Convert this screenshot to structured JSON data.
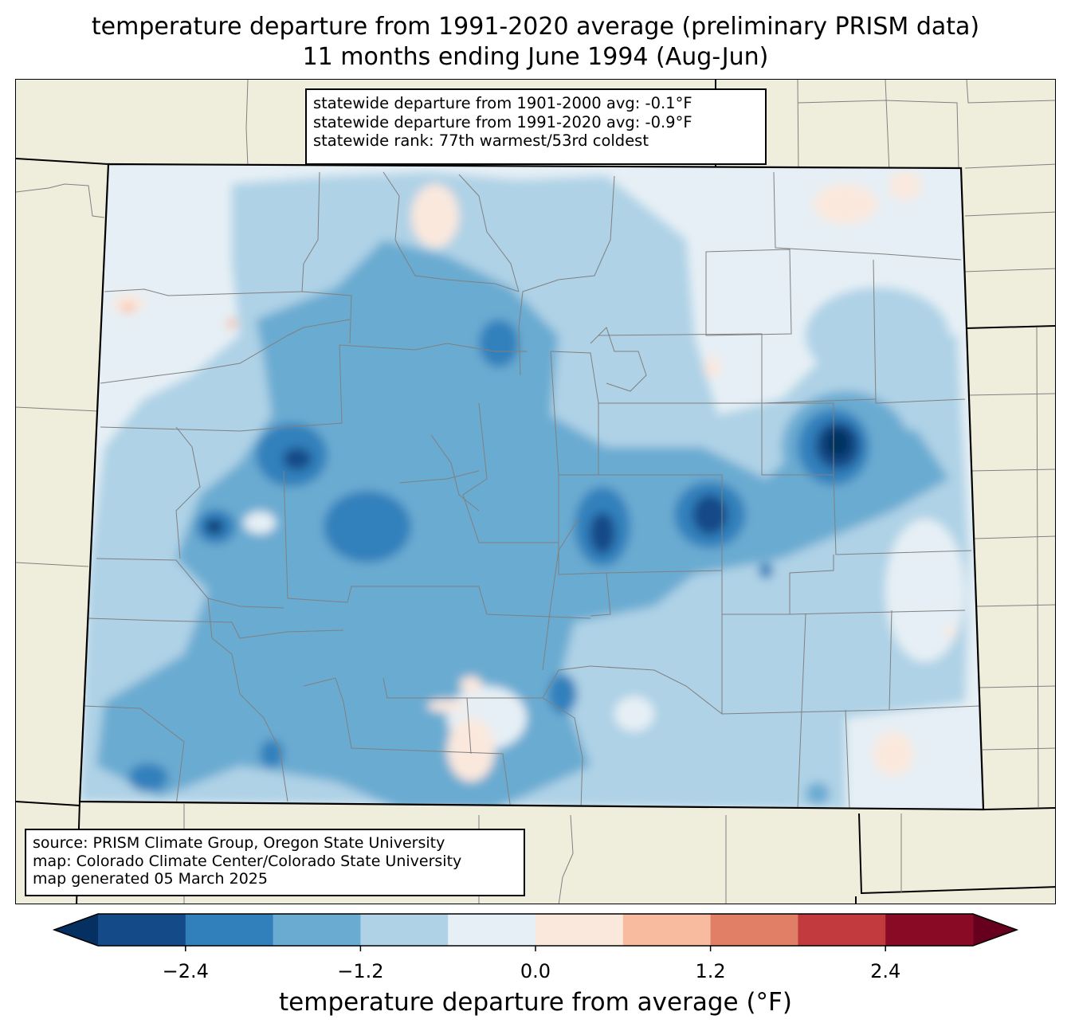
{
  "title": {
    "line1": "temperature departure from 1991-2020 average (preliminary PRISM data)",
    "line2": "11 months ending June 1994 (Aug-Jun)"
  },
  "stats_box": {
    "line1": "statewide departure from 1901-2000 avg: -0.1°F",
    "line2": "statewide departure from 1991-2020 avg: -0.9°F",
    "line3": "statewide rank: 77th warmest/53rd coldest"
  },
  "source_box": {
    "line1": "source: PRISM Climate Group, Oregon State University",
    "line2": "map: Colorado Climate Center/Colorado State University",
    "line3": "map generated 05 March 2025"
  },
  "colorbar": {
    "label": "temperature departure from average (°F)",
    "bins": [
      -3.0,
      -2.4,
      -1.8,
      -1.2,
      -0.6,
      0.0,
      0.6,
      1.2,
      1.8,
      2.4,
      3.0
    ],
    "tick_labels": [
      "−2.4",
      "−1.2",
      "0.0",
      "1.2",
      "2.4"
    ],
    "tick_values": [
      -2.4,
      -1.2,
      0.0,
      1.2,
      2.4
    ],
    "under_color": "#053061",
    "over_color": "#67001f",
    "colors": [
      "#144a87",
      "#3180bc",
      "#6aabd1",
      "#afd2e6",
      "#e6eff5",
      "#fae8dd",
      "#f8bba0",
      "#e07f66",
      "#c23a3d",
      "#880a25"
    ]
  },
  "map_colors": {
    "background_land": "#efeedd",
    "state_fill_base": "#e6eff5",
    "state_outline": "#000000",
    "county_lines": "#808080"
  }
}
